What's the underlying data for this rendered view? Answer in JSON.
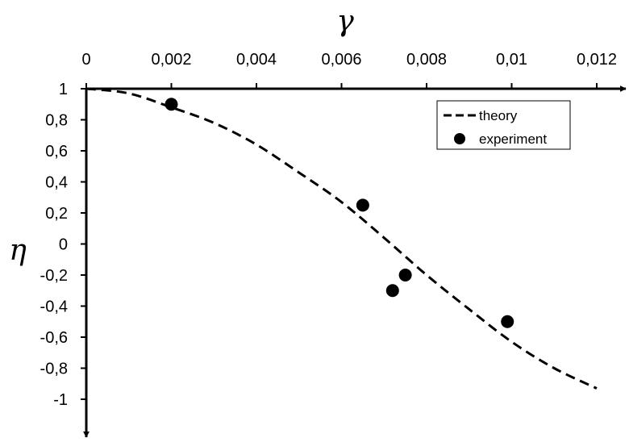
{
  "chart_data": {
    "type": "scatter",
    "title": "",
    "xlabel": "γ",
    "ylabel": "η",
    "x_axis_position": "top",
    "y_axis_direction": "down",
    "xlim": [
      0,
      0.012
    ],
    "ylim": [
      -1,
      1
    ],
    "x_ticks": [
      "0",
      "0,002",
      "0,004",
      "0,006",
      "0,008",
      "0,01",
      "0,012"
    ],
    "y_ticks": [
      "1",
      "0,8",
      "0,6",
      "0,4",
      "0,2",
      "0",
      "-0,2",
      "-0,4",
      "-0,6",
      "-0,8",
      "-1"
    ],
    "grid": false,
    "legend_position": "top-right",
    "series": [
      {
        "name": "theory",
        "style": "dashed-line",
        "color": "#000000",
        "x": [
          0,
          0.001,
          0.002,
          0.003,
          0.004,
          0.005,
          0.006,
          0.007,
          0.008,
          0.009,
          0.01,
          0.011,
          0.012
        ],
        "y": [
          1.0,
          0.97,
          0.88,
          0.78,
          0.64,
          0.46,
          0.27,
          0.04,
          -0.2,
          -0.42,
          -0.63,
          -0.8,
          -0.93
        ]
      },
      {
        "name": "experiment",
        "style": "markers",
        "color": "#000000",
        "x": [
          0.002,
          0.0065,
          0.0072,
          0.0075,
          0.0099
        ],
        "y": [
          0.9,
          0.25,
          -0.3,
          -0.2,
          -0.5
        ]
      }
    ]
  }
}
